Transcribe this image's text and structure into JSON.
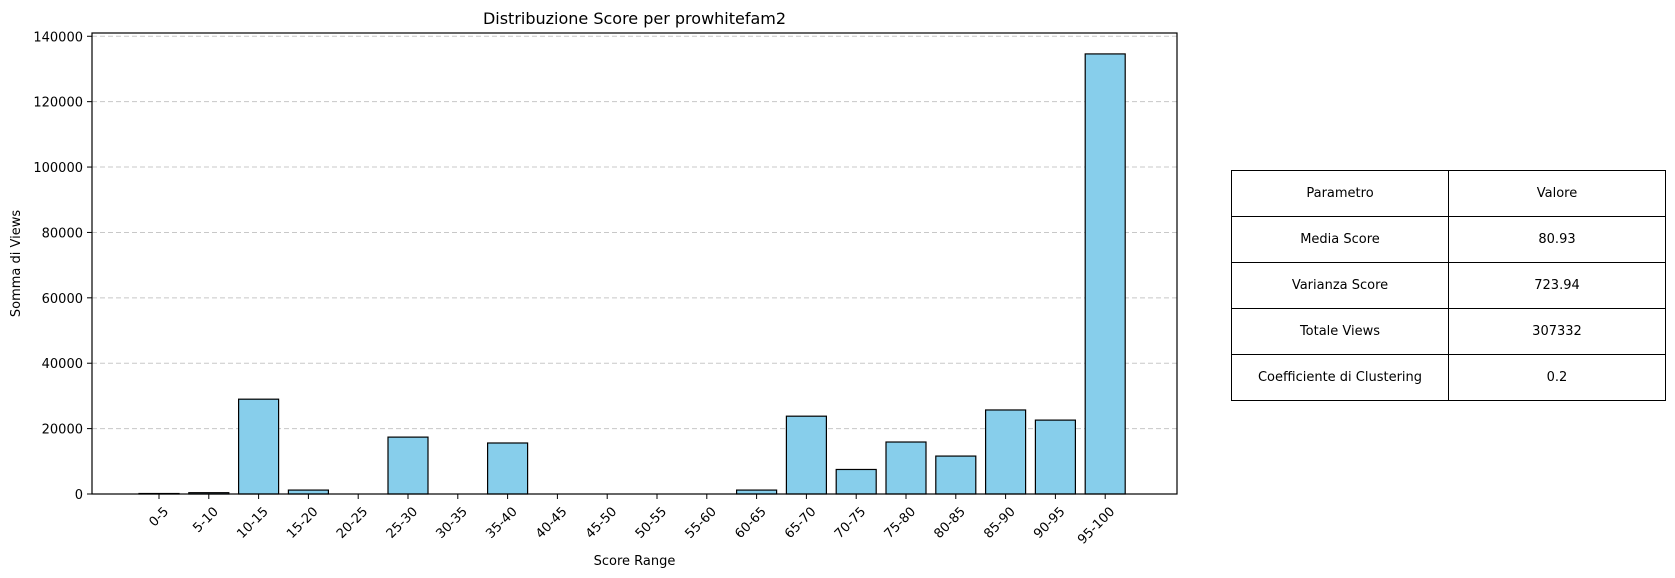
{
  "chart_data": {
    "type": "bar",
    "title": "Distribuzione Score per prowhitefam2",
    "xlabel": "Score Range",
    "ylabel": "Somma di Views",
    "categories": [
      "0-5",
      "5-10",
      "10-15",
      "15-20",
      "20-25",
      "25-30",
      "30-35",
      "35-40",
      "40-45",
      "45-50",
      "50-55",
      "55-60",
      "60-65",
      "65-70",
      "70-75",
      "75-80",
      "80-85",
      "85-90",
      "90-95",
      "95-100"
    ],
    "values": [
      150,
      400,
      29000,
      1200,
      0,
      17400,
      0,
      15600,
      0,
      0,
      0,
      0,
      1200,
      23800,
      7500,
      15900,
      11600,
      25700,
      22600,
      134600
    ],
    "ylim": [
      0,
      141000
    ],
    "yticks": [
      0,
      20000,
      40000,
      60000,
      80000,
      100000,
      120000,
      140000
    ],
    "grid": "y-dashed",
    "colors": {
      "bar_fill": "#87CEEB",
      "bar_edge": "#000000",
      "grid": "#c8c8c8"
    }
  },
  "table": {
    "header": [
      "Parametro",
      "Valore"
    ],
    "rows": [
      [
        "Media Score",
        "80.93"
      ],
      [
        "Varianza Score",
        "723.94"
      ],
      [
        "Totale Views",
        "307332"
      ],
      [
        "Coefficiente di Clustering",
        "0.2"
      ]
    ]
  }
}
